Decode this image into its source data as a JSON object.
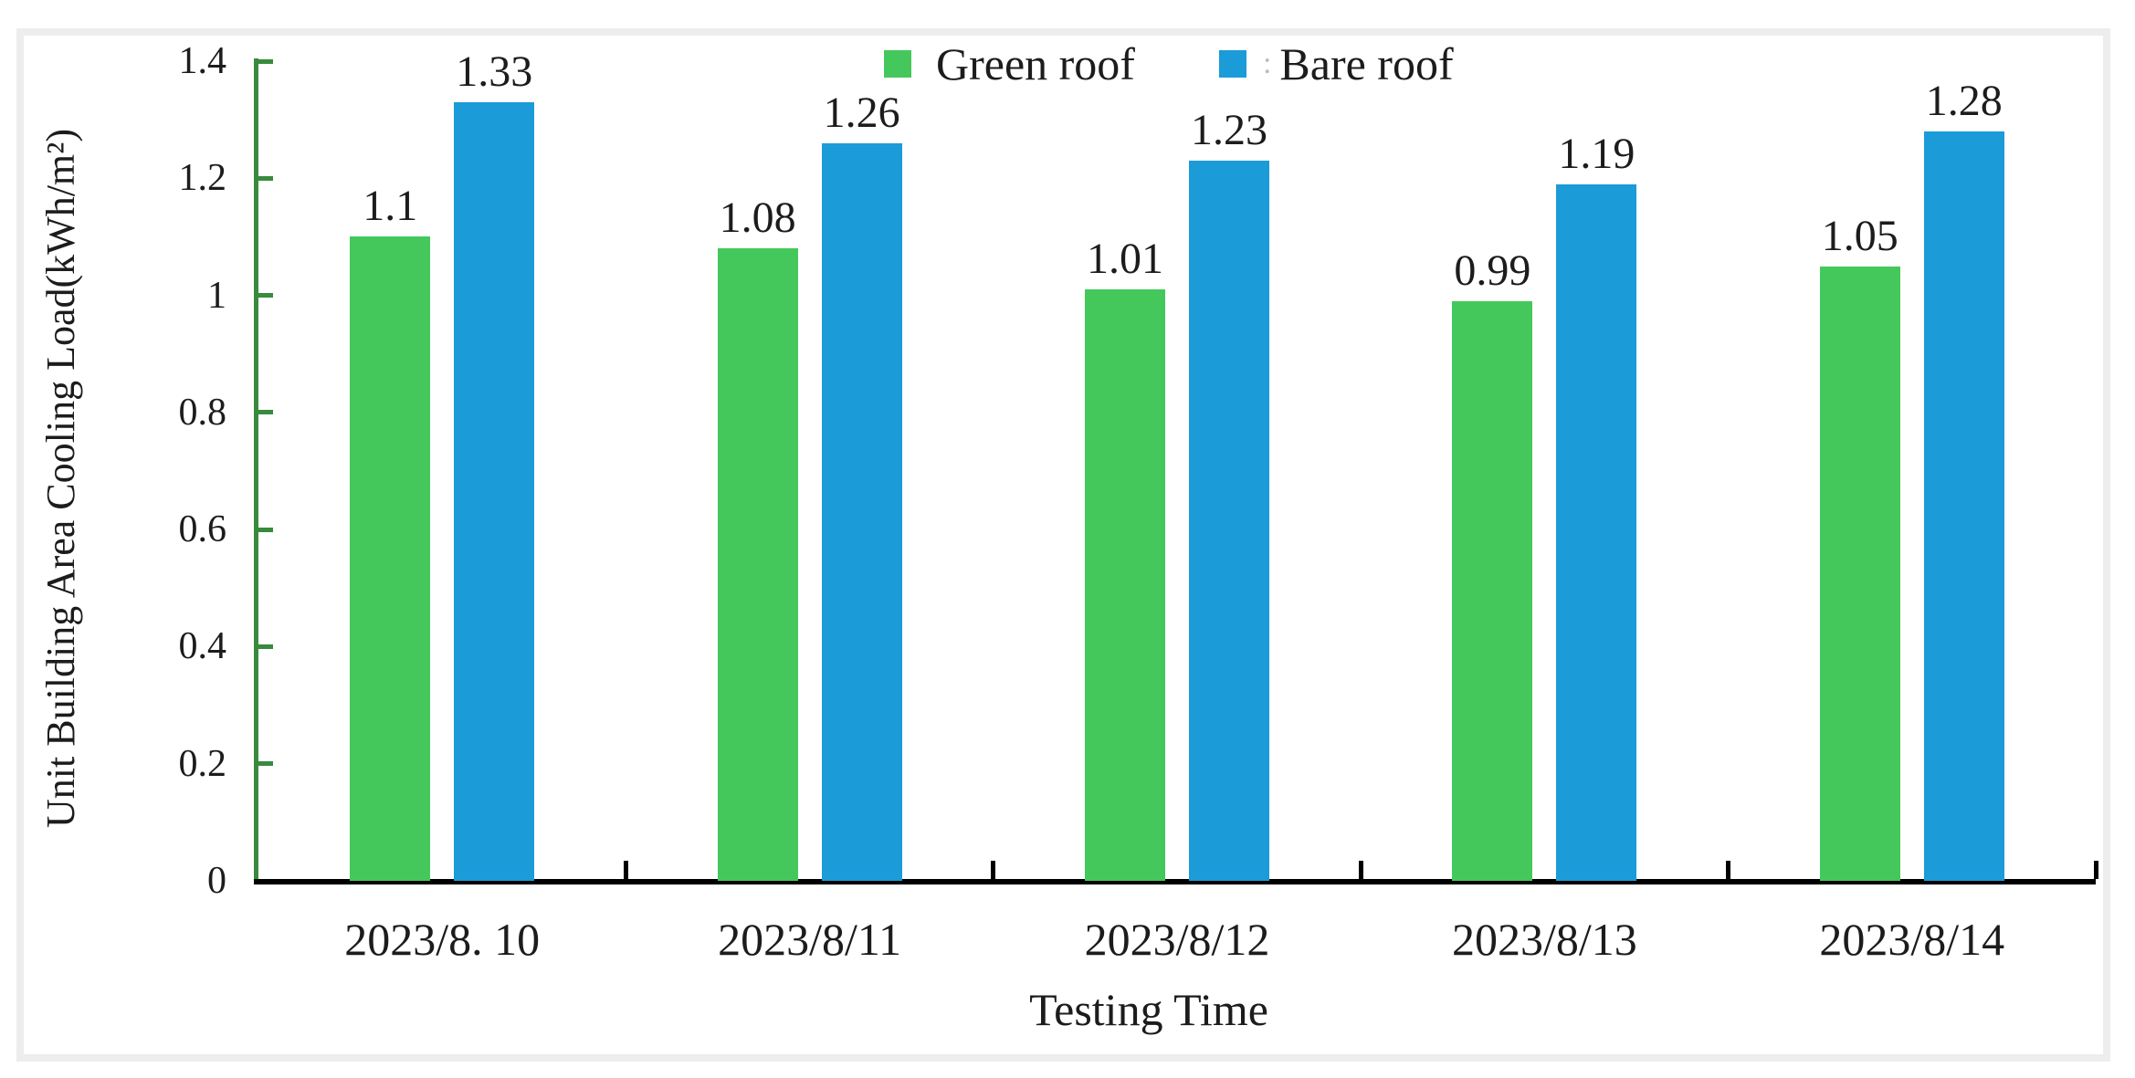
{
  "chart_data": {
    "type": "bar",
    "title": "",
    "xlabel": "Testing Time",
    "ylabel": "Unit Building Area Cooling Load(kWh/m²)",
    "categories": [
      "2023/8. 10",
      "2023/8/11",
      "2023/8/12",
      "2023/8/13",
      "2023/8/14"
    ],
    "series": [
      {
        "name": "Green roof",
        "color": "#44c85c",
        "values": [
          1.1,
          1.08,
          1.01,
          0.99,
          1.05
        ],
        "labels": [
          "1.1",
          "1.08",
          "1.01",
          "0.99",
          "1.05"
        ]
      },
      {
        "name": "Bare roof",
        "color": "#1b9bd8",
        "values": [
          1.33,
          1.26,
          1.23,
          1.19,
          1.28
        ],
        "labels": [
          "1.33",
          "1.26",
          "1.23",
          "1.19",
          "1.28"
        ]
      }
    ],
    "y_axis": {
      "min": 0,
      "max": 1.4,
      "tick_step": 0.2,
      "tick_labels": [
        "0",
        "0.2",
        "0.4",
        "0.6",
        "0.8",
        "1",
        "1.2",
        "1.4"
      ]
    },
    "legend": {
      "position": "top-center",
      "items": [
        {
          "label": "Green roof",
          "prefix": "",
          "swatch": "#44c85c"
        },
        {
          "label": "Bare roof",
          "prefix": ":",
          "swatch": "#1b9bd8"
        }
      ]
    },
    "grid": false,
    "axis_colors": {
      "y_axis": "#388a3c",
      "x_axis": "#000000"
    },
    "text_color": "#1c1c1c",
    "frame_color": "#ededed"
  }
}
